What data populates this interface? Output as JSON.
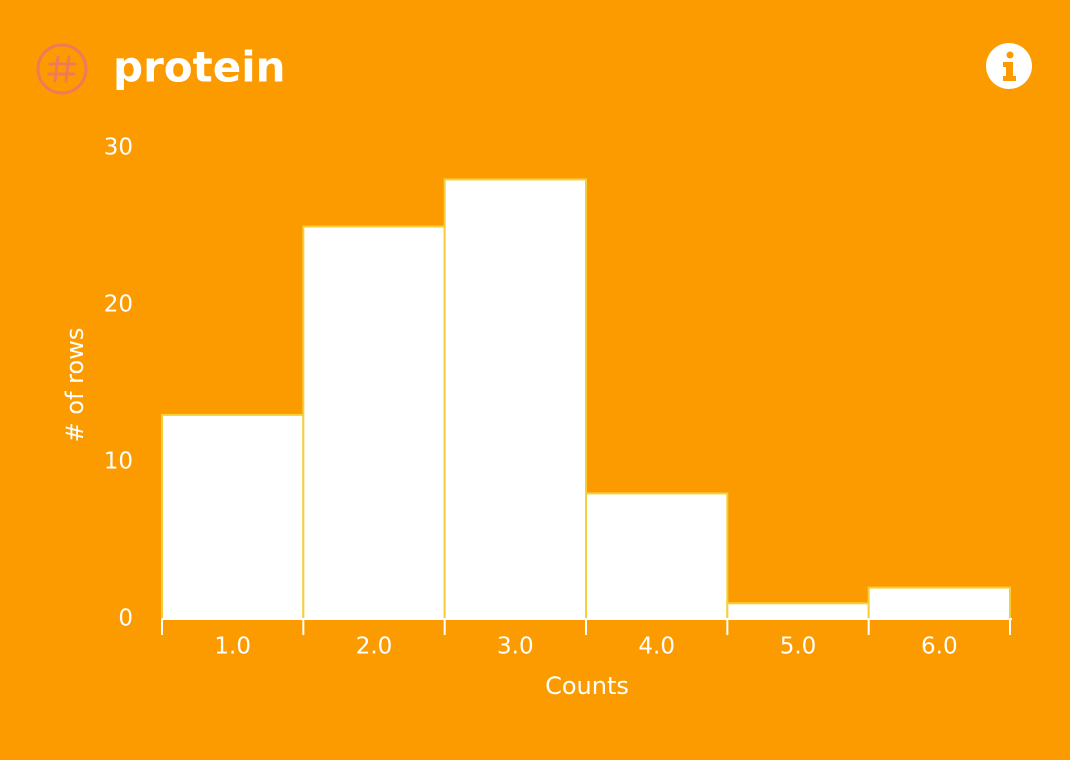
{
  "chart_data": {
    "type": "bar",
    "title": "protein",
    "x_label": "Counts",
    "y_label": "# of rows",
    "categories": [
      "1.0",
      "2.0",
      "3.0",
      "4.0",
      "5.0",
      "6.0"
    ],
    "values": [
      13,
      25,
      28,
      8,
      1,
      2
    ],
    "color": "#ffffff",
    "ylim": [
      0,
      30
    ],
    "yticks": [
      0,
      10,
      20,
      30
    ],
    "grid": false
  }
}
